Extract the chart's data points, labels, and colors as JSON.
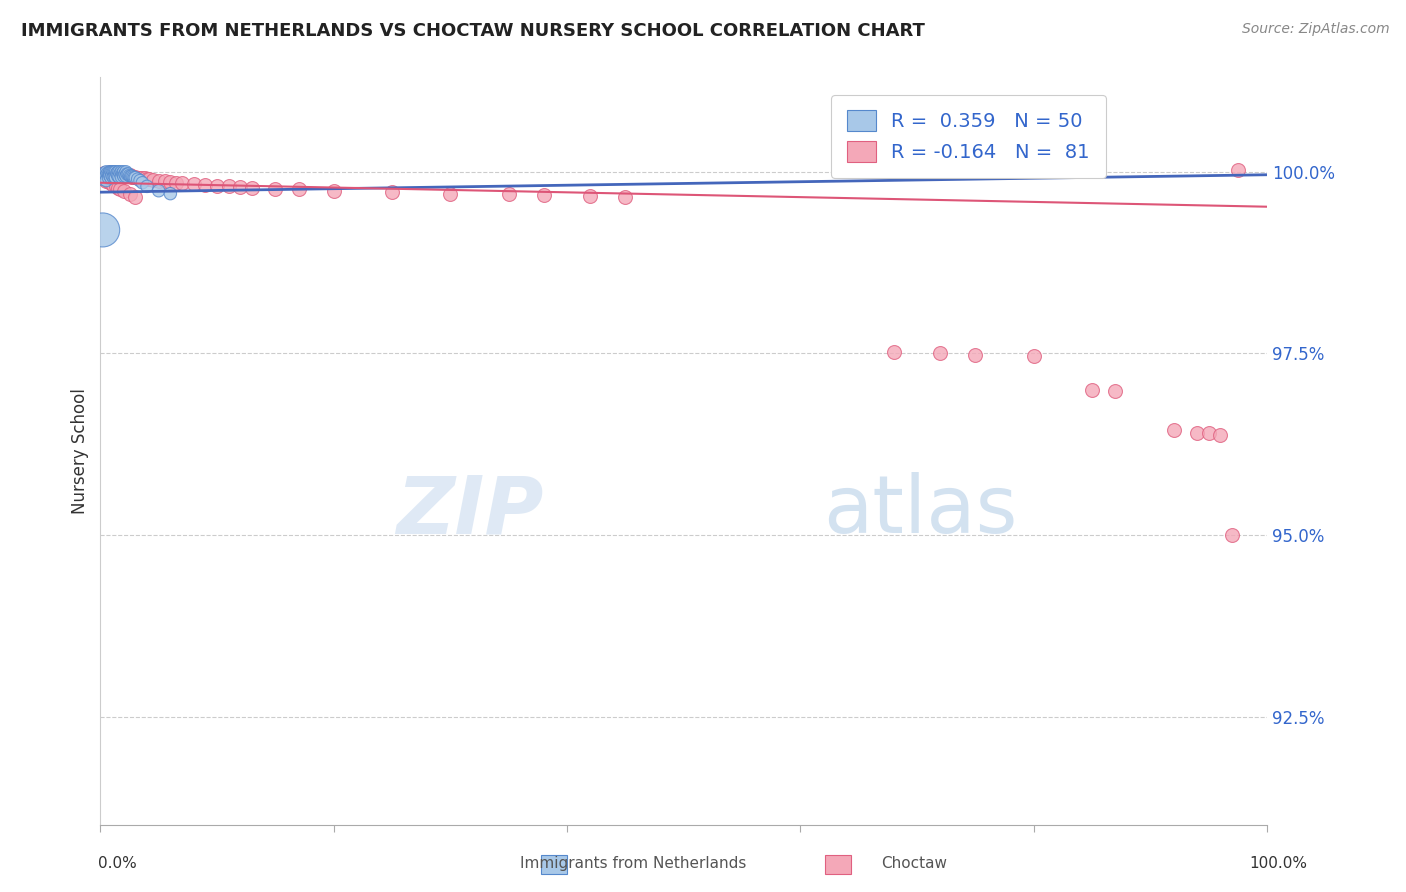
{
  "title": "IMMIGRANTS FROM NETHERLANDS VS CHOCTAW NURSERY SCHOOL CORRELATION CHART",
  "source": "Source: ZipAtlas.com",
  "ylabel": "Nursery School",
  "legend_label1": "Immigrants from Netherlands",
  "legend_label2": "Choctaw",
  "R1": 0.359,
  "N1": 50,
  "R2": -0.164,
  "N2": 81,
  "color1": "#a8c8e8",
  "color2": "#f4a8b8",
  "edge_color1": "#5588cc",
  "edge_color2": "#e06080",
  "line_color1": "#4466bb",
  "line_color2": "#dd5577",
  "watermark_zip": "ZIP",
  "watermark_atlas": "atlas",
  "ytick_labels": [
    "92.5%",
    "95.0%",
    "97.5%",
    "100.0%"
  ],
  "ytick_values": [
    0.925,
    0.95,
    0.975,
    1.0
  ],
  "xlim": [
    0.0,
    1.0
  ],
  "ylim": [
    0.91,
    1.013
  ],
  "blue_line_x": [
    0.0,
    1.0
  ],
  "blue_line_y": [
    0.9972,
    0.9996
  ],
  "pink_line_x": [
    0.0,
    1.0
  ],
  "pink_line_y": [
    0.9985,
    0.9952
  ],
  "blue_x": [
    0.002,
    0.003,
    0.004,
    0.005,
    0.005,
    0.005,
    0.006,
    0.007,
    0.007,
    0.008,
    0.008,
    0.009,
    0.009,
    0.01,
    0.01,
    0.011,
    0.011,
    0.012,
    0.012,
    0.013,
    0.013,
    0.014,
    0.015,
    0.015,
    0.016,
    0.016,
    0.017,
    0.018,
    0.018,
    0.019,
    0.02,
    0.02,
    0.021,
    0.022,
    0.022,
    0.023,
    0.024,
    0.025,
    0.026,
    0.027,
    0.028,
    0.029,
    0.03,
    0.032,
    0.034,
    0.036,
    0.04,
    0.05,
    0.06,
    0.002
  ],
  "blue_y": [
    0.999,
    0.9998,
    0.9998,
    1.0,
    0.9995,
    0.9988,
    0.9998,
    0.9997,
    0.9992,
    1.0,
    0.9995,
    1.0,
    0.9992,
    1.0,
    0.9995,
    1.0,
    0.9993,
    1.0,
    0.9994,
    1.0,
    0.9992,
    0.9998,
    1.0,
    0.9994,
    1.0,
    0.9993,
    0.9998,
    1.0,
    0.9993,
    0.9998,
    1.0,
    0.9994,
    0.9997,
    1.0,
    0.9994,
    0.9997,
    0.9997,
    0.9995,
    0.9994,
    0.9994,
    0.9993,
    0.9992,
    0.9992,
    0.999,
    0.9988,
    0.9985,
    0.998,
    0.9974,
    0.997,
    0.992
  ],
  "blue_sizes": [
    80,
    80,
    80,
    80,
    80,
    80,
    80,
    80,
    80,
    80,
    80,
    80,
    80,
    80,
    80,
    80,
    80,
    80,
    80,
    80,
    80,
    80,
    80,
    80,
    80,
    80,
    80,
    80,
    80,
    80,
    80,
    80,
    80,
    80,
    80,
    80,
    80,
    80,
    80,
    80,
    80,
    80,
    80,
    80,
    80,
    80,
    80,
    80,
    80,
    600
  ],
  "pink_x": [
    0.003,
    0.004,
    0.005,
    0.006,
    0.007,
    0.008,
    0.008,
    0.009,
    0.01,
    0.01,
    0.011,
    0.012,
    0.012,
    0.013,
    0.014,
    0.015,
    0.015,
    0.016,
    0.017,
    0.018,
    0.019,
    0.02,
    0.021,
    0.022,
    0.023,
    0.024,
    0.025,
    0.026,
    0.027,
    0.028,
    0.03,
    0.032,
    0.034,
    0.036,
    0.038,
    0.04,
    0.042,
    0.045,
    0.05,
    0.055,
    0.06,
    0.065,
    0.07,
    0.08,
    0.09,
    0.1,
    0.11,
    0.12,
    0.13,
    0.15,
    0.17,
    0.2,
    0.25,
    0.3,
    0.35,
    0.38,
    0.42,
    0.45,
    0.68,
    0.72,
    0.75,
    0.8,
    0.85,
    0.87,
    0.92,
    0.94,
    0.95,
    0.96,
    0.97,
    0.975,
    0.003,
    0.005,
    0.007,
    0.009,
    0.011,
    0.013,
    0.015,
    0.017,
    0.02,
    0.025,
    0.03
  ],
  "pink_y": [
    0.9998,
    0.9998,
    0.9998,
    0.9997,
    0.9998,
    1.0,
    0.9995,
    0.9998,
    1.0,
    0.9995,
    0.9997,
    0.9998,
    0.9993,
    0.9997,
    0.9997,
    0.9998,
    0.9993,
    0.9997,
    0.9996,
    0.9997,
    0.9996,
    0.9996,
    0.9996,
    0.9995,
    0.9995,
    0.9994,
    0.9995,
    0.9994,
    0.9993,
    0.9993,
    0.9993,
    0.9992,
    0.9992,
    0.9991,
    0.9991,
    0.999,
    0.999,
    0.9989,
    0.9988,
    0.9987,
    0.9986,
    0.9985,
    0.9984,
    0.9983,
    0.9982,
    0.9981,
    0.998,
    0.9979,
    0.9978,
    0.9977,
    0.9976,
    0.9974,
    0.9972,
    0.997,
    0.9969,
    0.9968,
    0.9967,
    0.9966,
    0.9752,
    0.975,
    0.9748,
    0.9746,
    0.97,
    0.9698,
    0.9645,
    0.964,
    0.964,
    0.9638,
    0.95,
    1.0002,
    0.999,
    0.9988,
    0.9986,
    0.9984,
    0.9982,
    0.998,
    0.9978,
    0.9976,
    0.9973,
    0.9969,
    0.9965
  ]
}
